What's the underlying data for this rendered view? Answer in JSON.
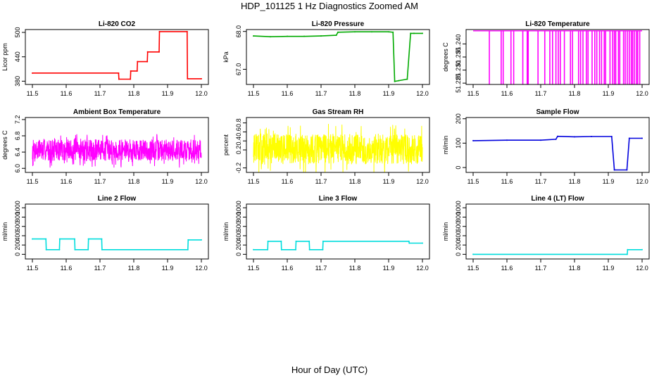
{
  "title": "HDP_101125  1 Hz Diagnostics Zoomed AM",
  "xlabel": "Hour of Day (UTC)",
  "chart_data": [
    {
      "type": "line",
      "title": "Li-820 CO2",
      "ylabel": "Licor ppm",
      "color": "#ff0000",
      "xlim": [
        11.5,
        12.0
      ],
      "ylim": [
        372,
        507
      ],
      "xticks": [
        "11.5",
        "11.6",
        "11.7",
        "11.8",
        "11.9",
        "12.0"
      ],
      "yticks": [
        380,
        440,
        500
      ],
      "ytick_labels": [
        "380",
        "440",
        "500"
      ],
      "x": [
        11.5,
        11.755,
        11.756,
        11.79,
        11.791,
        11.81,
        11.811,
        11.84,
        11.841,
        11.875,
        11.876,
        11.958,
        11.959,
        12.0
      ],
      "y": [
        400,
        400,
        385,
        385,
        405,
        405,
        428,
        428,
        452,
        452,
        502,
        502,
        386,
        386
      ]
    },
    {
      "type": "line",
      "title": "Li-820 Pressure",
      "ylabel": "kPa",
      "color": "#00aa00",
      "xlim": [
        11.5,
        12.0
      ],
      "ylim": [
        66.6,
        68.05
      ],
      "xticks": [
        "11.5",
        "11.6",
        "11.7",
        "11.8",
        "11.9",
        "12.0"
      ],
      "yticks": [
        67.0,
        68.0
      ],
      "ytick_labels": [
        "67.0",
        "68.0"
      ],
      "x": [
        11.5,
        11.55,
        11.6,
        11.65,
        11.7,
        11.745,
        11.75,
        11.8,
        11.85,
        11.9,
        11.913,
        11.918,
        11.93,
        11.955,
        11.965,
        11.975,
        12.0
      ],
      "y": [
        67.88,
        67.86,
        67.87,
        67.87,
        67.88,
        67.9,
        67.98,
        67.99,
        67.99,
        67.99,
        67.98,
        66.68,
        66.7,
        66.74,
        67.95,
        67.95,
        67.95
      ]
    },
    {
      "type": "line",
      "title": "Li-820 Temperature",
      "ylabel": "degrees C",
      "color": "#ff00ff",
      "xlim": [
        11.5,
        12.0
      ],
      "ylim": [
        51.2245,
        51.2455
      ],
      "xticks": [
        "11.5",
        "11.6",
        "11.7",
        "11.8",
        "11.9",
        "12.0"
      ],
      "yticks": [
        51.225,
        51.23,
        51.235,
        51.24
      ],
      "ytick_labels": [
        "51.225",
        "51.230",
        "51.235",
        "51.240"
      ],
      "baseline": 51.245,
      "drop_to": 51.2245,
      "drops_x": [
        11.548,
        11.583,
        11.589,
        11.612,
        11.62,
        11.647,
        11.66,
        11.663,
        11.692,
        11.712,
        11.727,
        11.735,
        11.745,
        11.752,
        11.758,
        11.77,
        11.788,
        11.794,
        11.812,
        11.818,
        11.825,
        11.835,
        11.84,
        11.852,
        11.86,
        11.866,
        11.874,
        11.88,
        11.888,
        11.892,
        11.905,
        11.913,
        11.918,
        11.922,
        11.93,
        11.934,
        11.945,
        11.95,
        11.956,
        11.962,
        11.968,
        11.972,
        11.977,
        11.983,
        11.987,
        11.993
      ]
    },
    {
      "type": "line",
      "title": "Ambient Box Temperature",
      "ylabel": "degrees C",
      "color": "#ff00ff",
      "xlim": [
        11.5,
        12.0
      ],
      "ylim": [
        5.9,
        7.25
      ],
      "xticks": [
        "11.5",
        "11.6",
        "11.7",
        "11.8",
        "11.9",
        "12.0"
      ],
      "yticks": [
        6.0,
        6.4,
        6.8,
        7.2
      ],
      "ytick_labels": [
        "6.0",
        "6.4",
        "6.8",
        "7.2"
      ],
      "noise_mean": 6.45,
      "noise_amplitude": 0.35,
      "noise_points": 900,
      "seed": 7
    },
    {
      "type": "line",
      "title": "Gas Stream RH",
      "ylabel": "percent",
      "color": "#ffff00",
      "xlim": [
        11.5,
        12.0
      ],
      "ylim": [
        -0.3,
        0.92
      ],
      "xticks": [
        "11.5",
        "11.6",
        "11.7",
        "11.8",
        "11.9",
        "12.0"
      ],
      "yticks": [
        -0.2,
        0.2,
        0.4,
        0.6,
        0.8
      ],
      "ytick_labels": [
        "-0.2",
        "0.2",
        "0.4",
        "0.6",
        "0.8"
      ],
      "noise_mean": 0.22,
      "noise_amplitude": 0.45,
      "noise_points": 900,
      "seed": 13
    },
    {
      "type": "line",
      "title": "Sample Flow",
      "ylabel": "ml/min",
      "color": "#0000dd",
      "xlim": [
        11.5,
        12.0
      ],
      "ylim": [
        -20,
        205
      ],
      "xticks": [
        "11.5",
        "11.6",
        "11.7",
        "11.8",
        "11.9",
        "12.0"
      ],
      "yticks": [
        0,
        100,
        200
      ],
      "ytick_labels": [
        "0",
        "100",
        "200"
      ],
      "x": [
        11.5,
        11.6,
        11.7,
        11.745,
        11.75,
        11.8,
        11.85,
        11.91,
        11.918,
        11.955,
        11.962,
        12.0
      ],
      "y": [
        110,
        112,
        112,
        116,
        128,
        126,
        127,
        127,
        -10,
        -10,
        120,
        120
      ]
    },
    {
      "type": "line",
      "title": "Line 2 Flow",
      "ylabel": "ml/min",
      "color": "#00dddd",
      "xlim": [
        11.5,
        12.0
      ],
      "ylim": [
        -100,
        1080
      ],
      "xticks": [
        "11.5",
        "11.6",
        "11.7",
        "11.8",
        "11.9",
        "12.0"
      ],
      "yticks": [
        0,
        200,
        400,
        600,
        800,
        1000
      ],
      "ytick_labels": [
        "0",
        "200",
        "400",
        "600",
        "800",
        "1000"
      ],
      "x": [
        11.5,
        11.54,
        11.541,
        11.58,
        11.581,
        11.625,
        11.626,
        11.665,
        11.666,
        11.705,
        11.706,
        11.96,
        11.961,
        12.0
      ],
      "y": [
        330,
        330,
        100,
        100,
        330,
        330,
        100,
        100,
        330,
        330,
        100,
        100,
        310,
        310
      ]
    },
    {
      "type": "line",
      "title": "Line 3 Flow",
      "ylabel": "ml/min",
      "color": "#00dddd",
      "xlim": [
        11.5,
        12.0
      ],
      "ylim": [
        -100,
        1080
      ],
      "xticks": [
        "11.5",
        "11.6",
        "11.7",
        "11.8",
        "11.9",
        "12.0"
      ],
      "yticks": [
        0,
        200,
        400,
        600,
        800,
        1000
      ],
      "ytick_labels": [
        "0",
        "200",
        "400",
        "600",
        "800",
        "1000"
      ],
      "x": [
        11.5,
        11.542,
        11.543,
        11.582,
        11.583,
        11.625,
        11.626,
        11.665,
        11.666,
        11.705,
        11.706,
        11.96,
        11.961,
        12.0
      ],
      "y": [
        100,
        100,
        280,
        280,
        100,
        100,
        280,
        280,
        100,
        100,
        280,
        280,
        240,
        240
      ]
    },
    {
      "type": "line",
      "title": "Line 4 (LT) Flow",
      "ylabel": "ml/min",
      "color": "#00dddd",
      "xlim": [
        11.5,
        12.0
      ],
      "ylim": [
        -100,
        1080
      ],
      "xticks": [
        "11.5",
        "11.6",
        "11.7",
        "11.8",
        "11.9",
        "12.0"
      ],
      "yticks": [
        0,
        200,
        400,
        600,
        800,
        1000
      ],
      "ytick_labels": [
        "0",
        "200",
        "400",
        "600",
        "800",
        "1000"
      ],
      "x": [
        11.5,
        11.956,
        11.957,
        12.0
      ],
      "y": [
        0,
        0,
        100,
        100
      ]
    }
  ]
}
